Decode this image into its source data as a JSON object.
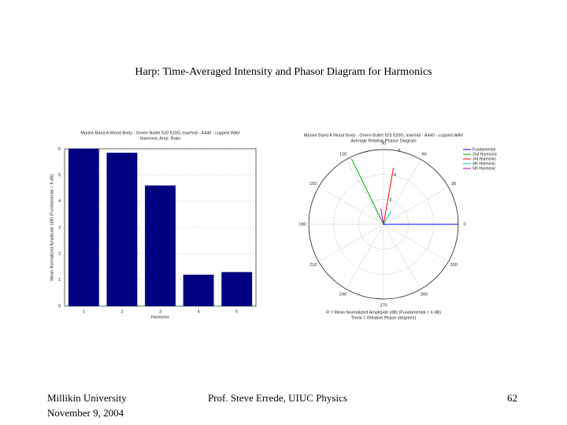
{
  "title": "Harp: Time-Averaged Intensity and Phasor Diagram for Harmonics",
  "footer": {
    "left": [
      "Millikin University",
      "November 9, 2004"
    ],
    "center": "Prof. Steve Errede, UIUC Physics",
    "page": "62"
  },
  "chart_data": [
    {
      "type": "bar",
      "title": [
        "Marine Band A Wood Body - Green Bullet 520 520G, low/mid - A440 - cupped.WAV",
        "Harmonic Amp. Ratio"
      ],
      "x_label": "Harmonic",
      "y_label": "Mean Normalized Amplitude (dB) (Fundamental = 6 dB)",
      "categories": [
        "1",
        "2",
        "3",
        "4",
        "5"
      ],
      "values": [
        6.0,
        5.85,
        4.6,
        1.2,
        1.3
      ],
      "color": "#000080",
      "ylim": [
        0,
        6
      ],
      "yticks": [
        0,
        1,
        2,
        3,
        4,
        5,
        6
      ],
      "grid": true
    },
    {
      "type": "polar",
      "title": [
        "Marine Band A Wood Body - Green Bullet 520 520G, low/mid - A440 - cupped.WAV",
        "Average Relative Phasor Diagram"
      ],
      "notes": [
        "R = Mean Normalized Amplitude (dB) (Fundamental = 6 dB)",
        "Theta = Relative Phase (degrees)"
      ],
      "rlim": [
        0,
        6
      ],
      "rticks": [
        2,
        4,
        6
      ],
      "thetaticks": [
        0,
        30,
        60,
        90,
        120,
        150,
        180,
        210,
        240,
        270,
        300,
        330
      ],
      "series": [
        {
          "name": "Fundamental",
          "color": "#0000ff",
          "r": [
            6.0
          ],
          "theta": [
            0
          ]
        },
        {
          "name": "2nd Harmonic",
          "color": "#00aa00",
          "r": [
            5.85
          ],
          "theta": [
            116
          ]
        },
        {
          "name": "3rd Harmonic",
          "color": "#ff0000",
          "r": [
            4.6
          ],
          "theta": [
            80
          ]
        },
        {
          "name": "4th Harmonic",
          "color": "#00bfbf",
          "r": [
            1.2
          ],
          "theta": [
            60
          ]
        },
        {
          "name": "5th Harmonic",
          "color": "#bf00bf",
          "r": [
            1.3
          ],
          "theta": [
            100
          ]
        }
      ]
    }
  ]
}
